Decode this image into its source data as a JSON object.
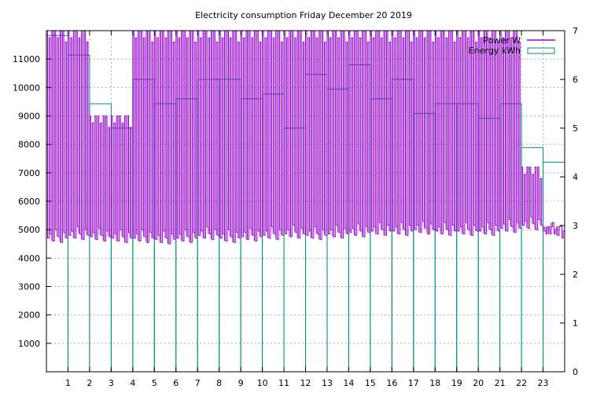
{
  "chart_data": {
    "type": "step",
    "title": "Electricity consumption Friday December 20 2019",
    "xlabel": "",
    "ylabel": "",
    "y2label": "",
    "grid": true,
    "legend_position": "top-right",
    "xlim": [
      0,
      24
    ],
    "ylim": [
      0,
      12000
    ],
    "y2lim": [
      0,
      7
    ],
    "x_ticks": [
      1,
      2,
      3,
      4,
      5,
      6,
      7,
      8,
      9,
      10,
      11,
      12,
      13,
      14,
      15,
      16,
      17,
      18,
      19,
      20,
      21,
      22,
      23
    ],
    "y_ticks": [
      1000,
      2000,
      3000,
      4000,
      5000,
      6000,
      7000,
      8000,
      9000,
      10000,
      11000
    ],
    "y2_ticks": [
      0,
      1,
      2,
      3,
      4,
      5,
      6,
      7
    ],
    "series": [
      {
        "name": "Power W",
        "axis": "y",
        "color": "#9400d3",
        "style": "high-frequency switching trace; read as baseline and switching peaks",
        "baseline_values": [
          4700,
          4800,
          4750,
          4700,
          4700,
          4650,
          4700,
          4800,
          4700,
          4750,
          4800,
          4850,
          4800,
          4850,
          4900,
          4950,
          4950,
          5000,
          4950,
          4950,
          4950,
          5050,
          5150,
          4950
        ],
        "peak_values": [
          12000,
          12000,
          9000,
          9000,
          12000,
          12000,
          12000,
          12000,
          12000,
          12000,
          12000,
          12000,
          12000,
          12000,
          12000,
          12000,
          12000,
          12000,
          12000,
          12000,
          12000,
          12000,
          7200,
          5100
        ]
      },
      {
        "name": "Energy kWh",
        "axis": "y2",
        "color": "#008b8b",
        "style": "step",
        "hours": [
          0,
          1,
          2,
          3,
          4,
          5,
          6,
          7,
          8,
          9,
          10,
          11,
          12,
          13,
          14,
          15,
          16,
          17,
          18,
          19,
          20,
          21,
          22,
          23
        ],
        "values": [
          6.9,
          6.5,
          5.5,
          5.0,
          6.0,
          5.5,
          5.6,
          6.0,
          6.0,
          5.6,
          5.7,
          5.0,
          6.1,
          5.8,
          6.3,
          5.6,
          6.0,
          5.3,
          5.5,
          5.5,
          5.2,
          5.5,
          4.6,
          4.3
        ]
      }
    ]
  }
}
